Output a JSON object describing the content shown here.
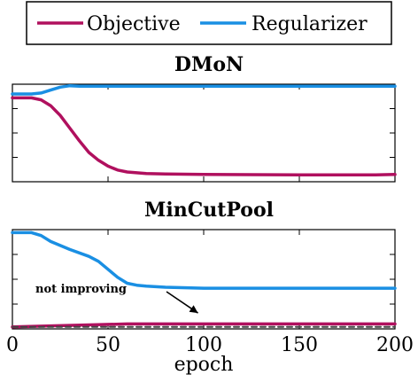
{
  "legend": {
    "entries": [
      {
        "name": "Objective",
        "color": "#B0105E"
      },
      {
        "name": "Regularizer",
        "color": "#1A8FE3"
      }
    ],
    "placement": "top-center"
  },
  "chart_data": [
    {
      "type": "line",
      "title": "DMoN",
      "xlim": [
        0,
        200
      ],
      "ylim": [
        0,
        1
      ],
      "grid": false,
      "series": [
        {
          "name": "Regularizer",
          "color": "#1A8FE3",
          "x": [
            0,
            10,
            15,
            20,
            25,
            30,
            35,
            40,
            50,
            70,
            100,
            150,
            200
          ],
          "y": [
            0.9,
            0.9,
            0.91,
            0.94,
            0.97,
            0.985,
            0.98,
            0.98,
            0.98,
            0.98,
            0.98,
            0.98,
            0.98
          ]
        },
        {
          "name": "Objective",
          "color": "#B0105E",
          "x": [
            0,
            10,
            15,
            20,
            25,
            30,
            35,
            40,
            45,
            50,
            55,
            60,
            70,
            80,
            100,
            150,
            190,
            200
          ],
          "y": [
            0.86,
            0.86,
            0.84,
            0.78,
            0.68,
            0.55,
            0.42,
            0.3,
            0.22,
            0.16,
            0.12,
            0.1,
            0.085,
            0.08,
            0.075,
            0.07,
            0.07,
            0.075
          ]
        }
      ]
    },
    {
      "type": "line",
      "title": "MinCutPool",
      "xlabel": "epoch",
      "xlim": [
        0,
        200
      ],
      "xticks": [
        0,
        50,
        100,
        150,
        200
      ],
      "ylim": [
        0,
        1
      ],
      "grid": false,
      "annotation": {
        "text": "not improving",
        "target_x": 97,
        "target_y": 0.16
      },
      "series": [
        {
          "name": "Regularizer",
          "color": "#1A8FE3",
          "x": [
            0,
            10,
            15,
            20,
            30,
            40,
            45,
            50,
            55,
            60,
            65,
            70,
            80,
            100,
            150,
            200
          ],
          "y": [
            0.97,
            0.97,
            0.94,
            0.88,
            0.8,
            0.73,
            0.68,
            0.6,
            0.52,
            0.46,
            0.44,
            0.43,
            0.42,
            0.41,
            0.41,
            0.41
          ]
        },
        {
          "name": "Objective",
          "color": "#B0105E",
          "x": [
            0,
            20,
            40,
            60,
            80,
            100,
            150,
            200
          ],
          "y": [
            0.02,
            0.03,
            0.04,
            0.05,
            0.05,
            0.05,
            0.05,
            0.05
          ]
        },
        {
          "name": "",
          "color": "#444444",
          "dashed": true,
          "x": [
            0,
            200
          ],
          "y": [
            0.02,
            0.02
          ]
        }
      ]
    }
  ]
}
